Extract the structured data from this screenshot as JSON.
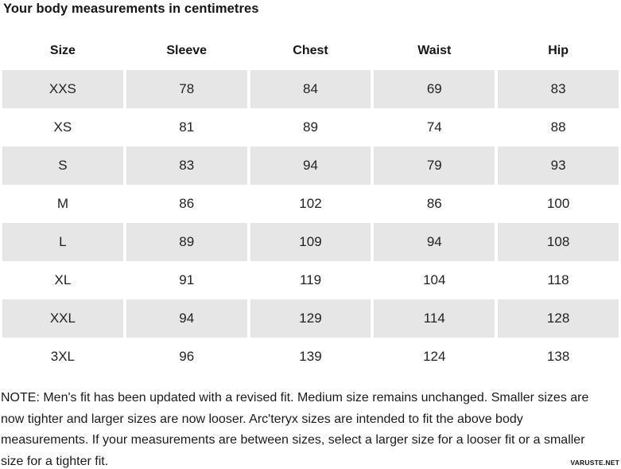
{
  "title": "Your body measurements in centimetres",
  "chart_data": {
    "type": "table",
    "title": "Your body measurements in centimetres",
    "units": "centimetres",
    "columns": [
      "Size",
      "Sleeve",
      "Chest",
      "Waist",
      "Hip"
    ],
    "rows": [
      [
        "XXS",
        "78",
        "84",
        "69",
        "83"
      ],
      [
        "XS",
        "81",
        "89",
        "74",
        "88"
      ],
      [
        "S",
        "83",
        "94",
        "79",
        "93"
      ],
      [
        "M",
        "86",
        "102",
        "86",
        "100"
      ],
      [
        "L",
        "89",
        "109",
        "94",
        "108"
      ],
      [
        "XL",
        "91",
        "119",
        "104",
        "118"
      ],
      [
        "XXL",
        "94",
        "129",
        "114",
        "128"
      ],
      [
        "3XL",
        "96",
        "139",
        "124",
        "138"
      ]
    ]
  },
  "note": {
    "lines": [
      "NOTE: Men's fit has been updated with a revised fit. Medium size remains unchanged. Smaller sizes are",
      "now tighter and larger sizes are now looser. Arc'teryx sizes are intended to fit the above body",
      "measurements. If your measurements are between sizes, select a larger size for a looser fit or a smaller",
      "size for a tighter fit."
    ]
  },
  "watermark": "VARUSTE.NET",
  "colors": {
    "row_alt": "#e6e6e6",
    "text": "#1a1a1a"
  }
}
